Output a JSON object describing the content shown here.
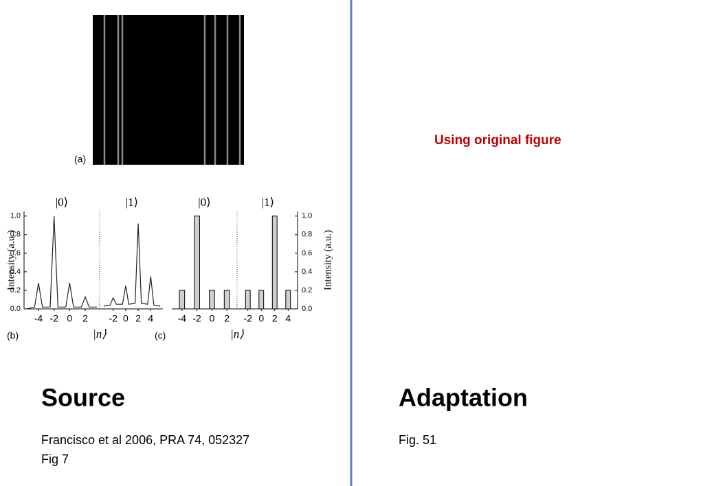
{
  "slide": {
    "note": "Using original figure",
    "source_heading": "Source",
    "source_citation": [
      "Francisco et al 2006, PRA 74, 052327",
      "Fig 7"
    ],
    "adaptation_heading": "Adaptation",
    "adaptation_text": "Fig. 51"
  },
  "figure": {
    "panel_a_label": "(a)"
  },
  "chart_data": [
    {
      "type": "line",
      "label": "(b)",
      "ylabel": "Intensity (a.u.)",
      "xlabel": "|n⟩",
      "axis_side": "left",
      "color": "#222222",
      "ylim": [
        0,
        1.05
      ],
      "yticks": [
        {
          "value": 0,
          "label": "0.0"
        },
        0.2,
        0.4,
        0.6,
        0.8,
        {
          "value": 1,
          "label": "1.0"
        }
      ],
      "panels": [
        {
          "title": "|0⟩",
          "xlim": [
            -5.5,
            3.5
          ],
          "xticks": [
            -4,
            -2,
            0,
            2
          ],
          "x": [
            -5.5,
            -4.5,
            -4,
            -3.5,
            -2.5,
            -2,
            -1.5,
            -0.5,
            0,
            0.5,
            1.5,
            2,
            2.5,
            3.5
          ],
          "values": [
            0,
            0.02,
            0.28,
            0.02,
            0.02,
            1.0,
            0.02,
            0.02,
            0.28,
            0.02,
            0.02,
            0.13,
            0.02,
            0.02
          ]
        },
        {
          "title": "|1⟩",
          "xlim": [
            -3.5,
            5.5
          ],
          "xticks": [
            -2,
            0,
            2,
            4
          ],
          "x": [
            -3.5,
            -2.5,
            -2,
            -1.5,
            -0.5,
            0,
            0.5,
            1.5,
            2,
            2.5,
            3.5,
            4,
            4.5,
            5.5
          ],
          "values": [
            0.03,
            0.04,
            0.12,
            0.05,
            0.05,
            0.25,
            0.05,
            0.06,
            0.92,
            0.06,
            0.05,
            0.35,
            0.04,
            0.03
          ]
        }
      ]
    },
    {
      "type": "bar",
      "label": "(c)",
      "ylabel": "Intensity (a.u.)",
      "xlabel": "|n⟩",
      "axis_side": "right",
      "color": "#d0d0d0",
      "ylim": [
        0,
        1.05
      ],
      "yticks": [
        {
          "value": 0,
          "label": "0.0"
        },
        0.2,
        0.4,
        0.6,
        0.8,
        {
          "value": 1,
          "label": "1.0"
        }
      ],
      "panels": [
        {
          "title": "|0⟩",
          "xlim": [
            -5,
            3
          ],
          "xticks": [
            -4,
            -2,
            0,
            2
          ],
          "x": [
            -4,
            -2,
            0,
            2
          ],
          "values": [
            0.2,
            1.0,
            0.2,
            0.2
          ]
        },
        {
          "title": "|1⟩",
          "xlim": [
            -3,
            5
          ],
          "xticks": [
            -2,
            0,
            2,
            4
          ],
          "x": [
            -2,
            0,
            2,
            4
          ],
          "values": [
            0.2,
            0.2,
            1.0,
            0.2
          ]
        }
      ]
    }
  ]
}
